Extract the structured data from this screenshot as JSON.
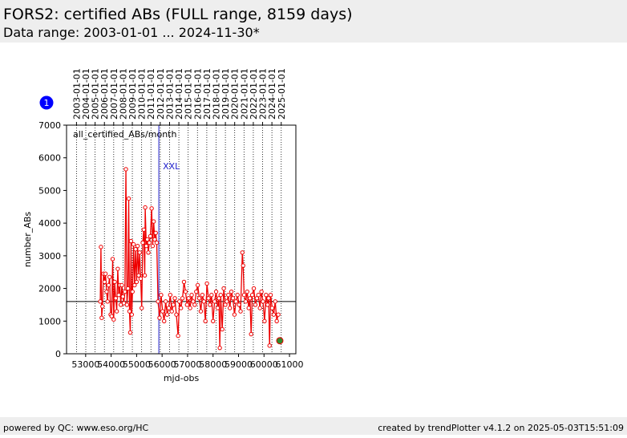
{
  "header": {
    "title": "FORS2: certified ABs (FULL range, 8159 days)",
    "subtitle": "Data range: 2003-01-01 ... 2024-11-30*"
  },
  "footer": {
    "left": "powered by QC: www.eso.org/HC",
    "right": "created by trendPlotter v4.1.2 on 2025-05-03T15:51:09"
  },
  "badge": "1",
  "chart_data": {
    "type": "line",
    "annotation": "all_certified_ABs/month",
    "x_label": "mjd-obs",
    "y_label": "number_ABs",
    "xlim": [
      52250,
      61250
    ],
    "ylim": [
      0,
      7000
    ],
    "xticks": [
      53000,
      54000,
      55000,
      56000,
      57000,
      58000,
      59000,
      60000,
      61000
    ],
    "yticks": [
      0,
      1000,
      2000,
      3000,
      4000,
      5000,
      6000,
      7000
    ],
    "x2ticks": [
      {
        "value": 52640,
        "label": "2003-01-01"
      },
      {
        "value": 53005,
        "label": "2004-01-01"
      },
      {
        "value": 53371,
        "label": "2005-01-01"
      },
      {
        "value": 53736,
        "label": "2006-01-01"
      },
      {
        "value": 54101,
        "label": "2007-01-01"
      },
      {
        "value": 54466,
        "label": "2008-01-01"
      },
      {
        "value": 54832,
        "label": "2009-01-01"
      },
      {
        "value": 55197,
        "label": "2010-01-01"
      },
      {
        "value": 55562,
        "label": "2011-01-01"
      },
      {
        "value": 55927,
        "label": "2012-01-01"
      },
      {
        "value": 56293,
        "label": "2013-01-01"
      },
      {
        "value": 56658,
        "label": "2014-01-01"
      },
      {
        "value": 57023,
        "label": "2015-01-01"
      },
      {
        "value": 57388,
        "label": "2016-01-01"
      },
      {
        "value": 57754,
        "label": "2017-01-01"
      },
      {
        "value": 58119,
        "label": "2018-01-01"
      },
      {
        "value": 58484,
        "label": "2019-01-01"
      },
      {
        "value": 58849,
        "label": "2020-01-01"
      },
      {
        "value": 59215,
        "label": "2021-01-01"
      },
      {
        "value": 59580,
        "label": "2022-01-01"
      },
      {
        "value": 59945,
        "label": "2023-01-01"
      },
      {
        "value": 60310,
        "label": "2024-01-01"
      },
      {
        "value": 60676,
        "label": "2025-01-01"
      }
    ],
    "reference_line": 1600,
    "event": {
      "x": 55872,
      "label": "XXL",
      "color": "#2222cc"
    },
    "series": [
      {
        "name": "all_certified_ABs/month",
        "color": "#ee0000",
        "x": [
          53573,
          53600,
          53630,
          53660,
          53700,
          53740,
          53780,
          53820,
          53860,
          53900,
          53940,
          53980,
          54020,
          54060,
          54100,
          54140,
          54180,
          54220,
          54260,
          54300,
          54340,
          54380,
          54420,
          54460,
          54500,
          54540,
          54580,
          54620,
          54660,
          54690,
          54720,
          54750,
          54780,
          54810,
          54840,
          54880,
          54920,
          54960,
          55000,
          55040,
          55080,
          55120,
          55160,
          55200,
          55240,
          55280,
          55320,
          55337,
          55380,
          55420,
          55460,
          55500,
          55540,
          55590,
          55630,
          55670,
          55710,
          55750,
          55790,
          55840,
          55900,
          55960,
          56020,
          56080,
          56140,
          56200,
          56260,
          56320,
          56380,
          56440,
          56500,
          56560,
          56628,
          56680,
          56740,
          56800,
          56860,
          56920,
          56980,
          57040,
          57100,
          57160,
          57220,
          57280,
          57340,
          57400,
          57460,
          57520,
          57580,
          57640,
          57700,
          57760,
          57820,
          57880,
          57940,
          58000,
          58060,
          58120,
          58180,
          58230,
          58265,
          58300,
          58360,
          58420,
          58480,
          58540,
          58600,
          58660,
          58720,
          58780,
          58840,
          58900,
          58960,
          59020,
          59080,
          59150,
          59180,
          59220,
          59280,
          59340,
          59400,
          59450,
          59494,
          59540,
          59600,
          59660,
          59720,
          59780,
          59840,
          59900,
          59960,
          60020,
          60080,
          60140,
          60180,
          60218,
          60260,
          60320,
          60380,
          60440,
          60500,
          60560
        ],
        "values": [
          1600,
          3270,
          1100,
          1450,
          2450,
          2200,
          2450,
          1900,
          1600,
          2100,
          2350,
          1200,
          1150,
          2900,
          1050,
          2200,
          1700,
          1300,
          2600,
          1800,
          2100,
          1500,
          2100,
          1750,
          1550,
          1900,
          5650,
          1500,
          2000,
          4750,
          1300,
          650,
          3450,
          1200,
          1900,
          3350,
          2100,
          3200,
          2200,
          3300,
          2400,
          3100,
          2300,
          1400,
          3400,
          3800,
          2400,
          4480,
          3300,
          3500,
          3100,
          3400,
          3600,
          4450,
          3300,
          4050,
          3500,
          3700,
          3400,
          1600,
          1100,
          1800,
          1300,
          1000,
          1600,
          1200,
          1400,
          1800,
          1300,
          1500,
          1700,
          1200,
          550,
          1600,
          1400,
          1700,
          2200,
          1900,
          1500,
          1700,
          1400,
          1800,
          1600,
          1500,
          1900,
          2100,
          1700,
          1300,
          1800,
          1600,
          1000,
          2150,
          1700,
          1500,
          1800,
          1000,
          1600,
          1900,
          1400,
          1700,
          180,
          1800,
          750,
          2000,
          1500,
          1600,
          1800,
          1400,
          1900,
          1700,
          1200,
          1600,
          1800,
          1500,
          1300,
          3100,
          2700,
          1800,
          1600,
          1900,
          1400,
          1700,
          600,
          1800,
          2000,
          1500,
          1700,
          1800,
          1400,
          1900,
          1600,
          1000,
          1800,
          1500,
          1700,
          250,
          1800,
          1400,
          1200,
          1600,
          1000,
          1200
        ]
      }
    ],
    "last_point": {
      "x": 60620,
      "y": 400,
      "color": "#2e8b2e"
    }
  }
}
